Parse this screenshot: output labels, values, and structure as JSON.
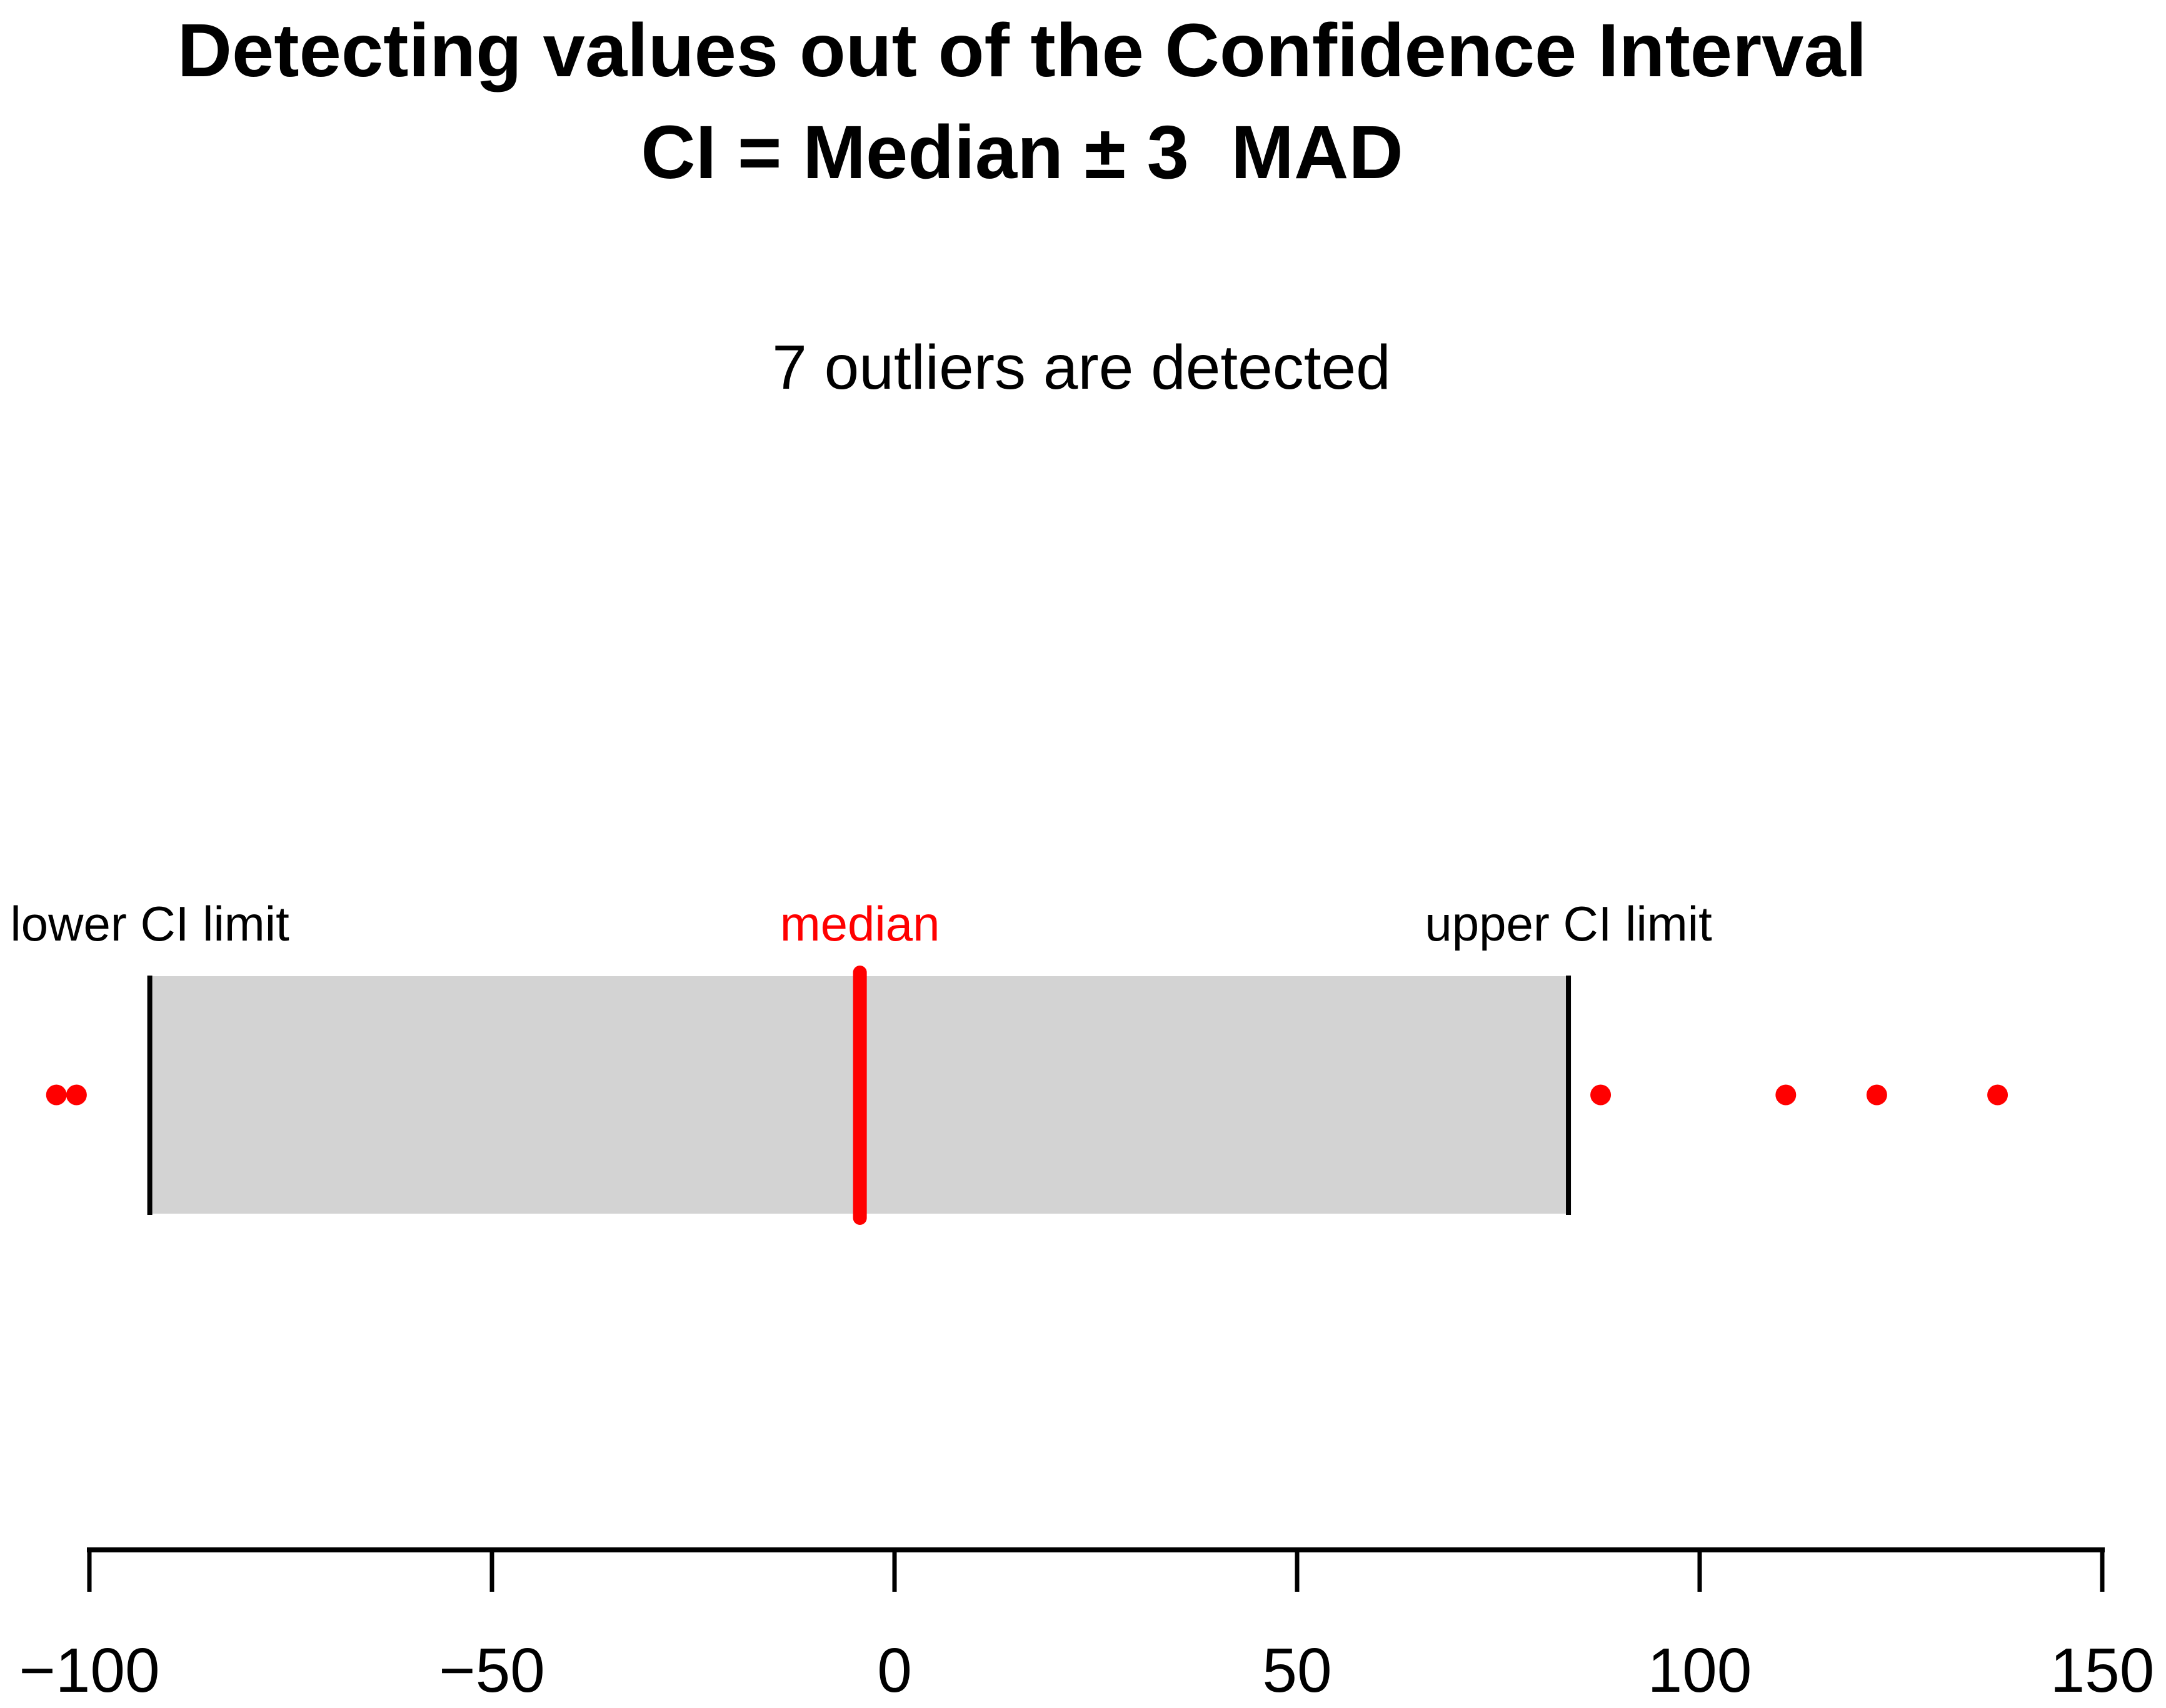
{
  "title": {
    "line1": "Detecting values out of the Confidence Interval",
    "line2": "CI = Median ± 3  MAD"
  },
  "subtitle": "7 outliers are detected",
  "labels": {
    "lower": "lower CI limit",
    "median": "median",
    "upper": "upper CI limit"
  },
  "chart_data": {
    "type": "scatter",
    "title": "Detecting values out of the Confidence Interval  CI = Median ± 3  MAD",
    "annotation": "7 outliers are detected",
    "outliers_detected_count": 7,
    "ci": {
      "lower": -92.5,
      "median": -4.3,
      "upper": 83.7
    },
    "outliers_visible": [
      -104.1,
      -101.6,
      87.7,
      110.7,
      122.0,
      137.0
    ],
    "x_axis": {
      "ticks": [
        -100,
        -50,
        0,
        50,
        100,
        150
      ],
      "tick_labels": [
        "−100",
        "−50",
        "0",
        "50",
        "100",
        "150"
      ],
      "range": [
        -100,
        150
      ],
      "grid": false
    },
    "legend": "none",
    "colors": {
      "ci_fill": "#D3D3D3",
      "median_line": "#FF0000",
      "outlier_dot": "#FF0000",
      "axis": "#000000",
      "limit_line": "#000000"
    }
  }
}
